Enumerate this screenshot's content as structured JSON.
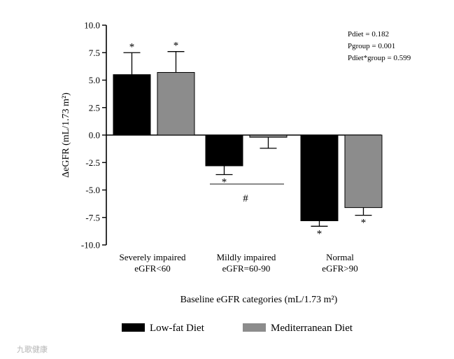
{
  "chart_data": {
    "type": "bar",
    "title": "",
    "xlabel": "Baseline eGFR categories (mL/1.73 m²)",
    "ylabel": "ΔeGFR (mL/1.73 m²)",
    "ylim": [
      -10.0,
      10.0
    ],
    "yticks": [
      "10.0",
      "7.5",
      "5.0",
      "2.5",
      "0.0",
      "-2.5",
      "-5.0",
      "-7.5",
      "-10.0"
    ],
    "ytick_values": [
      10.0,
      7.5,
      5.0,
      2.5,
      0.0,
      -2.5,
      -5.0,
      -7.5,
      -10.0
    ],
    "categories": [
      {
        "line1": "Severely impaired",
        "line2": "eGFR<60"
      },
      {
        "line1": "Mildly impaired",
        "line2": "eGFR=60-90"
      },
      {
        "line1": "Normal",
        "line2": "eGFR>90"
      }
    ],
    "series": [
      {
        "name": "Low-fat Diet",
        "color": "#000000",
        "values": [
          5.5,
          -2.8,
          -7.8
        ],
        "errors": [
          2.0,
          0.8,
          0.5
        ],
        "markers": [
          "*",
          "*",
          "*"
        ]
      },
      {
        "name": "Mediterranean Diet",
        "color": "#8c8c8c",
        "values": [
          5.7,
          -0.2,
          -6.6
        ],
        "errors": [
          1.9,
          1.0,
          0.7
        ],
        "markers": [
          "*",
          "",
          "*"
        ]
      }
    ],
    "annotation_hash": "#",
    "stats_text": [
      "Pdiet = 0.182",
      "Pgroup = 0.001",
      "Pdiet*group = 0.599"
    ],
    "legend_position": "bottom",
    "grid": false
  },
  "watermark": "九歌健康"
}
